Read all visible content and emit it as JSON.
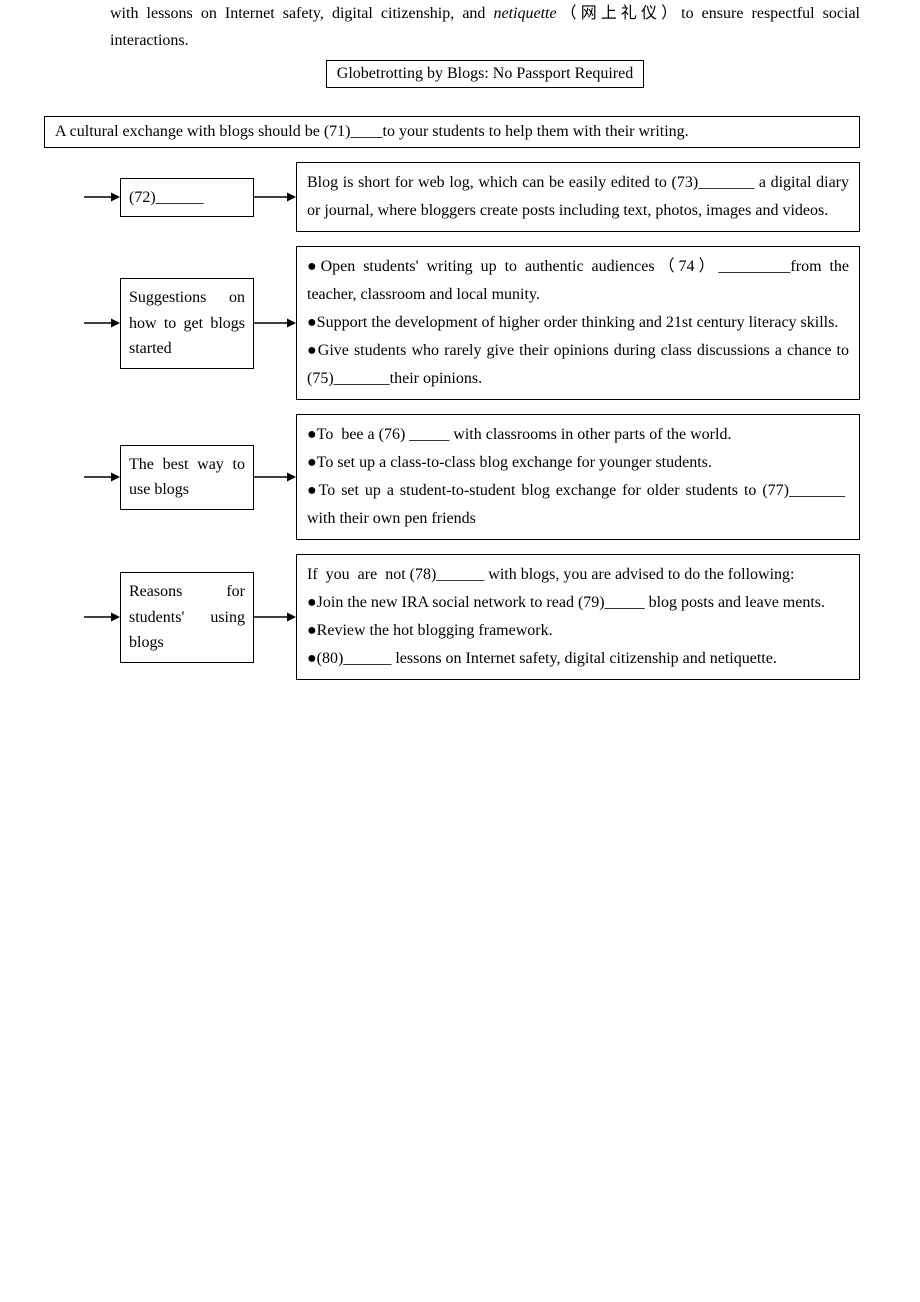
{
  "intro_html": "with lessons on Internet safety, digital citizenship, and <i>netiquette</i><span class=\"cn\">（网上礼仪）</span>to ensure respectful social interactions.",
  "title": "Globetrotting by Blogs: No Passport Required",
  "subtitle": "A cultural exchange with blogs should be (71)____to your students to help them with their writing.",
  "rows": [
    {
      "left": "(72)______",
      "right_html": "Blog is short for web log, which can be easily edited to (73)_______ a digital diary or journal, where bloggers create posts including text, photos, images and videos."
    },
    {
      "left": "Suggestions on how to get blogs started",
      "right_html": "●Open students' writing up to authentic audiences<span class=\"cn\">（</span>74<span class=\"cn\">）</span>_________from the teacher, classroom and local munity.<br>●Support the development of higher order thinking and 21st century literacy skills.<br>●Give students who rarely give their opinions during class discussions a chance to (75)_______their opinions."
    },
    {
      "left": "The best way to use blogs",
      "right_html": "●To&nbsp;&nbsp;bee a (76) _____ with classrooms in other parts of the world.<br>●To set up a class-to-class blog exchange for younger students.<br>●To set up a student-to-student blog exchange for older students to (77)_______&nbsp; with their own pen friends"
    },
    {
      "left": "Reasons for students' using blogs",
      "right_html": "If&nbsp;&nbsp;you&nbsp;&nbsp;are&nbsp;&nbsp;not (78)______ with blogs, you are advised to do the following:<br>●Join the new IRA social network to read (79)_____ blog posts and leave ments.<br>●Review the hot blogging framework.<br>●(80)______ lessons on Internet safety, digital citizenship and netiquette.",
      "clipped": true
    }
  ],
  "arrow": {
    "stroke": "#000000",
    "stroke_width": 1.6,
    "in_width": 36,
    "mid_width": 42,
    "height": 14
  },
  "colors": {
    "background": "#ffffff",
    "text": "#000000",
    "border": "#000000"
  }
}
